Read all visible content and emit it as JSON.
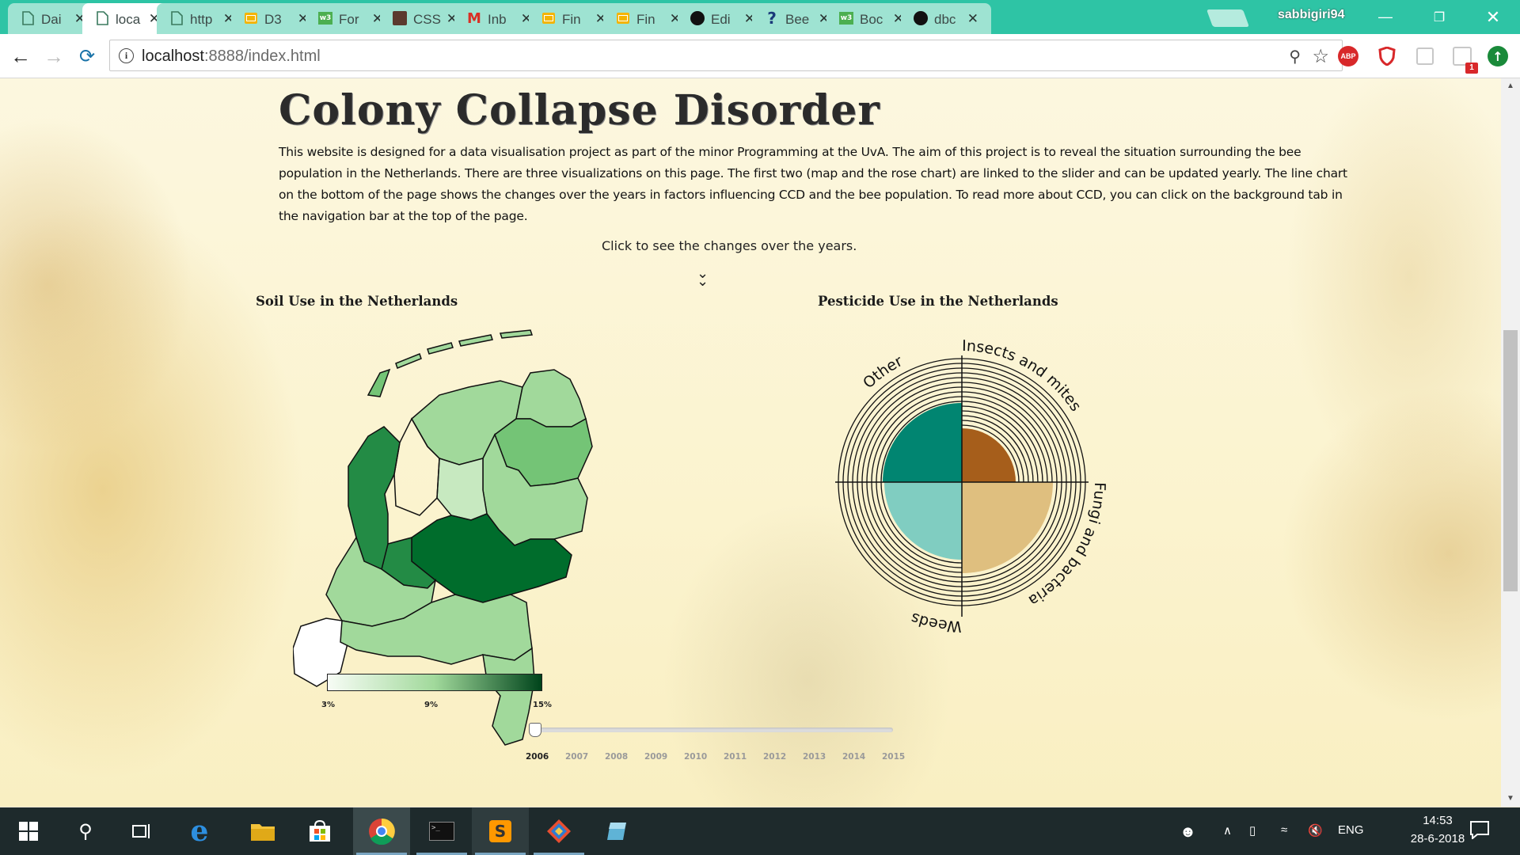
{
  "browser": {
    "tabs": [
      {
        "title": "Dai",
        "icon": "doc-icon"
      },
      {
        "title": "loca",
        "icon": "doc-icon",
        "active": true
      },
      {
        "title": "http",
        "icon": "doc-icon"
      },
      {
        "title": "D3",
        "icon": "slides-icon"
      },
      {
        "title": "For",
        "icon": "w3schools-icon"
      },
      {
        "title": "CSS",
        "icon": "avatar-icon"
      },
      {
        "title": "Inb",
        "icon": "gmail-icon"
      },
      {
        "title": "Fin",
        "icon": "slides-icon"
      },
      {
        "title": "Fin",
        "icon": "slides-icon"
      },
      {
        "title": "Edi",
        "icon": "github-icon"
      },
      {
        "title": "Bee",
        "icon": "question-icon"
      },
      {
        "title": "Boc",
        "icon": "w3schools-icon"
      },
      {
        "title": "dbc",
        "icon": "github-icon"
      }
    ],
    "profile_name": "sabbigiri94",
    "url_host": "localhost",
    "url_path": ":8888/index.html",
    "extensions": {
      "abp_label": "ABP",
      "notif_badge": "1"
    }
  },
  "page": {
    "title": "Colony Collapse Disorder",
    "intro": "This website is designed for a data visualisation project as part of the minor Programming at the UvA. The aim of this project is to reveal the situation surrounding the bee population in the Netherlands. There are three visualizations on this page. The first two (map and the rose chart) are linked to the slider and can be updated yearly. The line chart on the bottom of the page shows the changes over the years in factors influencing CCD and the bee population. To read more about CCD, you can click on the background tab in the navigation bar at the top of the page.",
    "hint": "Click to see the changes over the years.",
    "chevron": "⌄"
  },
  "map": {
    "title": "Soil Use in the Netherlands",
    "legend_labels": [
      "3%",
      "9%",
      "15%"
    ],
    "legend_colors": [
      "#f7fcf5",
      "#a1d99b",
      "#00441b"
    ],
    "provinces": [
      {
        "name": "Groningen",
        "color": "#a1d99b"
      },
      {
        "name": "Friesland",
        "color": "#a1d99b"
      },
      {
        "name": "Drenthe",
        "color": "#74c476"
      },
      {
        "name": "Overijssel",
        "color": "#a1d99b"
      },
      {
        "name": "Flevoland",
        "color": "#c7e9c0"
      },
      {
        "name": "Gelderland",
        "color": "#006d2c"
      },
      {
        "name": "Utrecht",
        "color": "#238b45"
      },
      {
        "name": "Noord-Holland",
        "color": "#238b45"
      },
      {
        "name": "Zuid-Holland",
        "color": "#a1d99b"
      },
      {
        "name": "Zeeland",
        "color": "#ffffff"
      },
      {
        "name": "Noord-Brabant",
        "color": "#a1d99b"
      },
      {
        "name": "Limburg",
        "color": "#a1d99b"
      }
    ]
  },
  "rose": {
    "title": "Pesticide Use in the Netherlands",
    "labels": [
      "Insects and mites",
      "Fungi and bacteria",
      "Weeds",
      "Other"
    ],
    "colors": [
      "#a65e1b",
      "#dfbf7f",
      "#80cdc1",
      "#018571"
    ]
  },
  "slider": {
    "years": [
      "2006",
      "2007",
      "2008",
      "2009",
      "2010",
      "2011",
      "2012",
      "2013",
      "2014",
      "2015"
    ],
    "selected": "2006"
  },
  "taskbar": {
    "language": "ENG",
    "time": "14:53",
    "date": "28-6-2018"
  }
}
